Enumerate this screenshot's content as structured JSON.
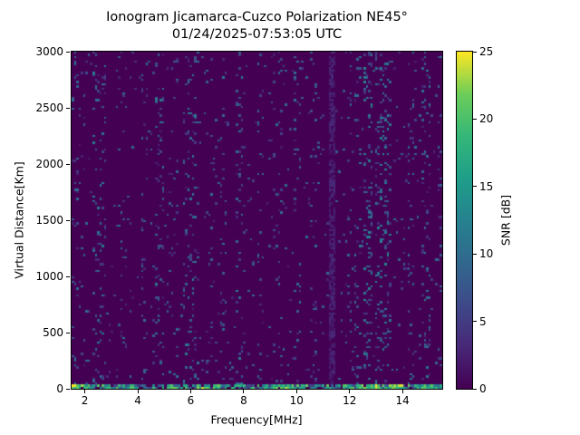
{
  "chart_data": {
    "type": "heatmap",
    "title": "Ionogram Jicamarca-Cuzco Polarization NE45°",
    "subtitle": "01/24/2025-07:53:05 UTC",
    "xlabel": "Frequency[MHz]",
    "ylabel": "Virtual Distance[Km]",
    "xlim": [
      1.5,
      15.5
    ],
    "ylim": [
      0,
      3000
    ],
    "xticks": [
      2,
      4,
      6,
      8,
      10,
      12,
      14
    ],
    "yticks": [
      0,
      500,
      1000,
      1500,
      2000,
      2500,
      3000
    ],
    "grid": {
      "cols": 160,
      "rows": 150
    },
    "colorbar": {
      "label": "SNR [dB]",
      "min": 0,
      "max": 25,
      "ticks": [
        0,
        5,
        10,
        15,
        20,
        25
      ],
      "colormap": "viridis",
      "stops": [
        "#440154",
        "#482878",
        "#3e4a89",
        "#31688e",
        "#26828e",
        "#1f9e89",
        "#35b779",
        "#6dcd59",
        "#fde725"
      ]
    },
    "background_snr_db": 0,
    "background_color": "#440154",
    "noise_speckle": {
      "density": 0.025,
      "snr_range": [
        2,
        10
      ]
    },
    "interference_bands": [
      {
        "f_range": [
          1.5,
          1.8
        ],
        "density": 0.09,
        "snr_range": [
          2,
          11
        ]
      },
      {
        "f_range": [
          2.3,
          2.8
        ],
        "density": 0.12,
        "snr_range": [
          2,
          12
        ]
      },
      {
        "f_range": [
          3.35,
          3.6
        ],
        "density": 0.08,
        "snr_range": [
          2,
          11
        ]
      },
      {
        "f_range": [
          4.1,
          4.4
        ],
        "density": 0.09,
        "snr_range": [
          2,
          11
        ]
      },
      {
        "f_range": [
          4.65,
          5.0
        ],
        "density": 0.11,
        "snr_range": [
          2,
          12
        ]
      },
      {
        "f_range": [
          5.25,
          5.5
        ],
        "density": 0.08,
        "snr_range": [
          2,
          11
        ]
      },
      {
        "f_range": [
          5.7,
          6.3
        ],
        "density": 0.13,
        "snr_range": [
          2,
          12
        ]
      },
      {
        "f_range": [
          6.6,
          6.85
        ],
        "density": 0.07,
        "snr_range": [
          2,
          11
        ]
      },
      {
        "f_range": [
          7.1,
          7.35
        ],
        "density": 0.09,
        "snr_range": [
          2,
          11
        ]
      },
      {
        "f_range": [
          7.7,
          8.0
        ],
        "density": 0.1,
        "snr_range": [
          2,
          12
        ]
      },
      {
        "f_range": [
          8.5,
          8.75
        ],
        "density": 0.09,
        "snr_range": [
          2,
          11
        ]
      },
      {
        "f_range": [
          9.15,
          9.45
        ],
        "density": 0.08,
        "snr_range": [
          2,
          11
        ]
      },
      {
        "f_range": [
          9.9,
          10.15
        ],
        "density": 0.07,
        "snr_range": [
          2,
          11
        ]
      },
      {
        "f_range": [
          10.5,
          10.8
        ],
        "density": 0.06,
        "snr_range": [
          2,
          10
        ]
      },
      {
        "f_range": [
          11.25,
          11.45
        ],
        "density": 0.75,
        "snr_range": [
          1,
          3.5
        ]
      },
      {
        "f_range": [
          11.8,
          12.05
        ],
        "density": 0.06,
        "snr_range": [
          2,
          10
        ]
      },
      {
        "f_range": [
          12.2,
          12.45
        ],
        "density": 0.1,
        "snr_range": [
          2,
          12
        ]
      },
      {
        "f_range": [
          12.55,
          12.85
        ],
        "density": 0.17,
        "snr_range": [
          3,
          13
        ]
      },
      {
        "f_range": [
          13.0,
          13.6
        ],
        "density": 0.18,
        "snr_range": [
          3,
          13
        ]
      },
      {
        "f_range": [
          14.2,
          14.5
        ],
        "density": 0.08,
        "snr_range": [
          2,
          11
        ]
      },
      {
        "f_range": [
          14.7,
          15.1
        ],
        "density": 0.12,
        "snr_range": [
          2,
          12
        ]
      },
      {
        "f_range": [
          15.3,
          15.5
        ],
        "density": 0.1,
        "snr_range": [
          2,
          11
        ]
      }
    ],
    "ground_return_layer": {
      "km_range": [
        0,
        40
      ],
      "density": 0.8,
      "snr_range": [
        4,
        22
      ],
      "hot_segments": [
        {
          "f_range": [
            1.5,
            2.0
          ],
          "snr_range": [
            14,
            25
          ]
        },
        {
          "f_range": [
            6.2,
            6.6
          ],
          "snr_range": [
            14,
            25
          ]
        },
        {
          "f_range": [
            9.3,
            9.9
          ],
          "snr_range": [
            14,
            25
          ]
        },
        {
          "f_range": [
            12.3,
            13.1
          ],
          "snr_range": [
            16,
            25
          ]
        },
        {
          "f_range": [
            13.5,
            14.0
          ],
          "snr_range": [
            15,
            25
          ]
        },
        {
          "f_range": [
            14.8,
            15.3
          ],
          "snr_range": [
            12,
            22
          ]
        }
      ]
    }
  }
}
